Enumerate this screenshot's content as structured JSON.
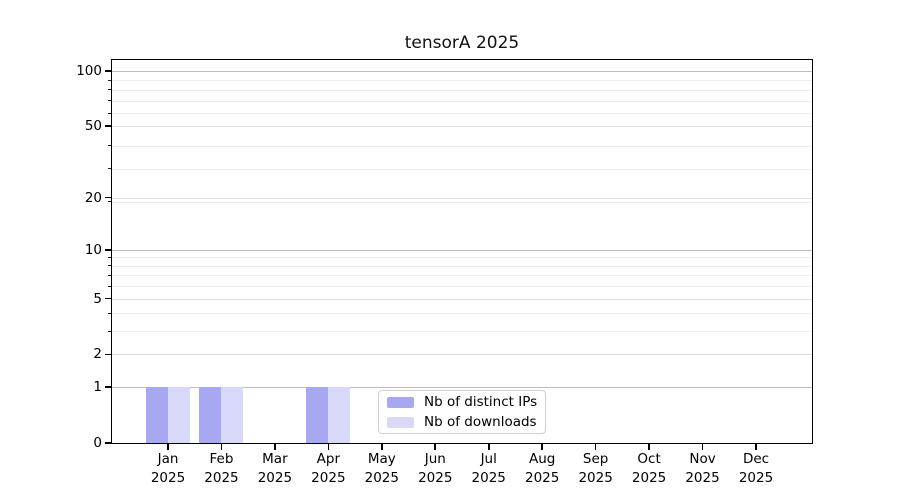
{
  "title": "tensorA 2025",
  "legend": {
    "items": [
      {
        "label": "Nb of distinct IPs",
        "color": "#a8a8f2"
      },
      {
        "label": "Nb of downloads",
        "color": "#d8d8f8"
      }
    ]
  },
  "chart_data": {
    "type": "bar",
    "title": "tensorA 2025",
    "categories": [
      "Jan",
      "Feb",
      "Mar",
      "Apr",
      "May",
      "Jun",
      "Jul",
      "Aug",
      "Sep",
      "Oct",
      "Nov",
      "Dec"
    ],
    "x_year": "2025",
    "series": [
      {
        "name": "Nb of distinct IPs",
        "color": "#a8a8f2",
        "values": [
          1,
          1,
          0,
          1,
          0,
          0,
          0,
          0,
          0,
          0,
          0,
          0
        ]
      },
      {
        "name": "Nb of downloads",
        "color": "#d8d8f8",
        "values": [
          1,
          1,
          0,
          1,
          0,
          0,
          0,
          0,
          0,
          0,
          0,
          0
        ]
      }
    ],
    "yticks": [
      0,
      1,
      2,
      5,
      10,
      20,
      50,
      100
    ],
    "yscale": "log1p",
    "ylim": [
      0,
      115
    ],
    "xlabel": "",
    "ylabel": "",
    "grid": true,
    "legend_position": "lower center-left"
  }
}
